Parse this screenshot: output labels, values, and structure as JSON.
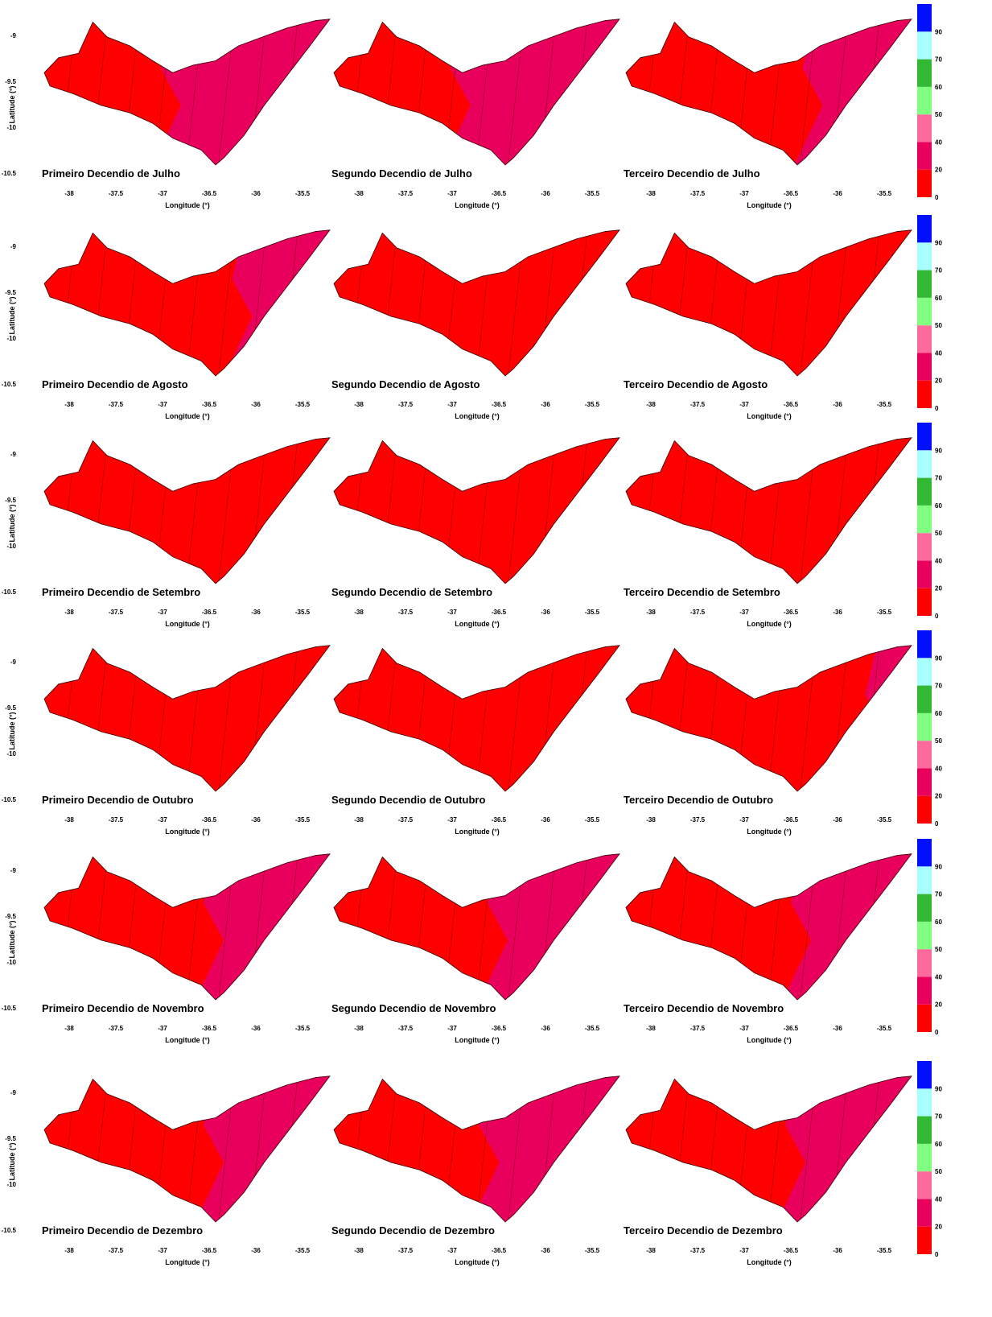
{
  "x_axis_label": "Longitude (°)",
  "y_axis_label": "Latitude (°)",
  "xticks": [
    "-38",
    "-37.5",
    "-37",
    "-36.5",
    "-36",
    "-35.5"
  ],
  "yticks": [
    "-9",
    "-9.5",
    "-10",
    "-10.5"
  ],
  "colorbar": {
    "labels": [
      "0",
      "20",
      "40",
      "50",
      "60",
      "70",
      "90"
    ],
    "colors": [
      "#ff0000",
      "#e8005c",
      "#ff6a9c",
      "#80ff80",
      "#33b833",
      "#a8ffff",
      "#0010ff"
    ]
  },
  "rows": [
    {
      "panels": [
        {
          "title": "Primeiro Decendio de Julho"
        },
        {
          "title": "Segundo Decendio de Julho"
        },
        {
          "title": "Terceiro Decendio de Julho"
        }
      ]
    },
    {
      "panels": [
        {
          "title": "Primeiro Decendio de Agosto"
        },
        {
          "title": "Segundo Decendio de Agosto"
        },
        {
          "title": "Terceiro Decendio de Agosto"
        }
      ]
    },
    {
      "panels": [
        {
          "title": "Primeiro Decendio de Setembro"
        },
        {
          "title": "Segundo Decendio de Setembro"
        },
        {
          "title": "Terceiro Decendio de Setembro"
        }
      ]
    },
    {
      "panels": [
        {
          "title": "Primeiro Decendio de Outubro"
        },
        {
          "title": "Segundo Decendio de Outubro"
        },
        {
          "title": "Terceiro Decendio de Outubro"
        }
      ]
    },
    {
      "panels": [
        {
          "title": "Primeiro Decendio de Novembro"
        },
        {
          "title": "Segundo Decendio de Novembro"
        },
        {
          "title": "Terceiro Decendio de Novembro"
        }
      ]
    },
    {
      "panels": [
        {
          "title": "Primeiro Decendio de Dezembro"
        },
        {
          "title": "Segundo Decendio de Dezembro"
        },
        {
          "title": "Terceiro Decendio de Dezembro"
        }
      ]
    }
  ]
}
